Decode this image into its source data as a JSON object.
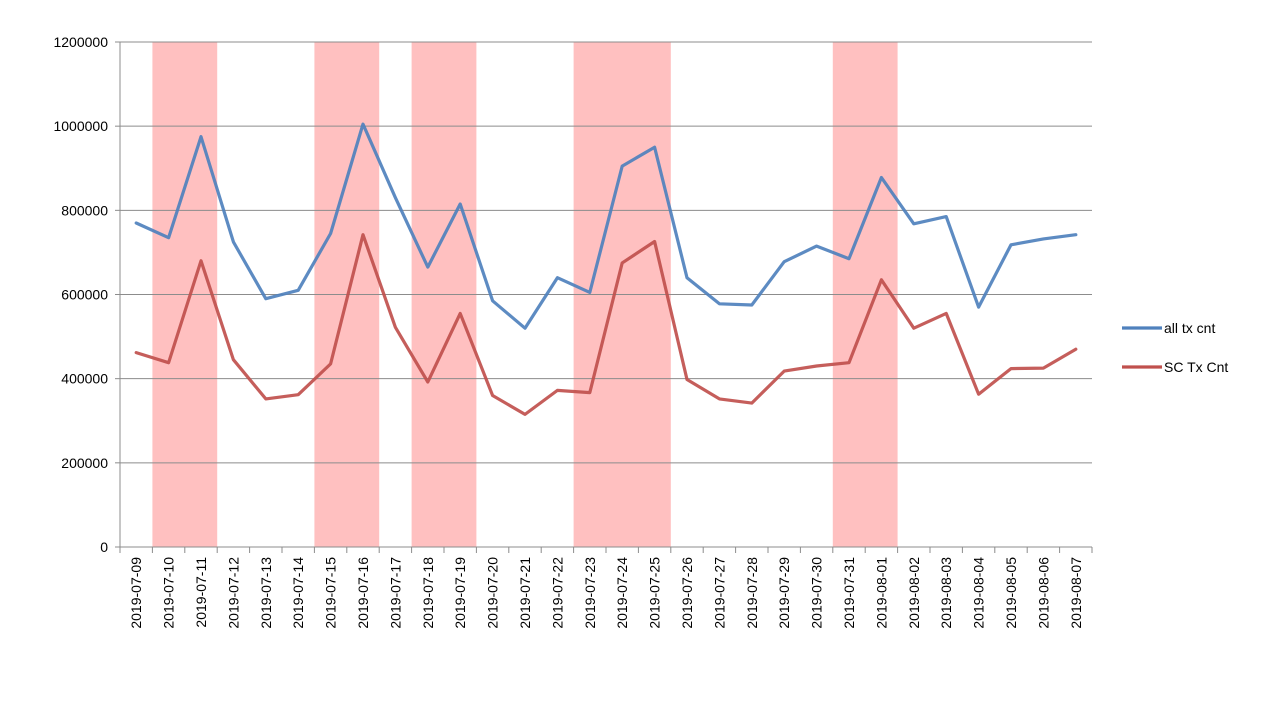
{
  "chart_data": {
    "type": "line",
    "title": "",
    "xlabel": "",
    "ylabel": "",
    "ylim": [
      0,
      1200000
    ],
    "yticks": [
      "0",
      "200000",
      "400000",
      "600000",
      "800000",
      "1000000",
      "1200000"
    ],
    "grid": "horizontal",
    "legend_position": "right",
    "categories": [
      "2019-07-09",
      "2019-07-10",
      "2019-07-11",
      "2019-07-12",
      "2019-07-13",
      "2019-07-14",
      "2019-07-15",
      "2019-07-16",
      "2019-07-17",
      "2019-07-18",
      "2019-07-19",
      "2019-07-20",
      "2019-07-21",
      "2019-07-22",
      "2019-07-23",
      "2019-07-24",
      "2019-07-25",
      "2019-07-26",
      "2019-07-27",
      "2019-07-28",
      "2019-07-29",
      "2019-07-30",
      "2019-07-31",
      "2019-08-01",
      "2019-08-02",
      "2019-08-03",
      "2019-08-04",
      "2019-08-05",
      "2019-08-06",
      "2019-08-07"
    ],
    "series": [
      {
        "name": "all tx cnt",
        "color": "#4f81bd",
        "values": [
          770000,
          735000,
          975000,
          725000,
          590000,
          610000,
          745000,
          1005000,
          830000,
          665000,
          815000,
          585000,
          520000,
          640000,
          605000,
          905000,
          950000,
          640000,
          578000,
          575000,
          678000,
          715000,
          685000,
          878000,
          768000,
          785000,
          570000,
          718000,
          732000,
          742000
        ]
      },
      {
        "name": "SC Tx Cnt",
        "color": "#c0504d",
        "values": [
          462000,
          438000,
          680000,
          445000,
          352000,
          362000,
          435000,
          742000,
          522000,
          392000,
          555000,
          360000,
          315000,
          372000,
          367000,
          675000,
          726000,
          398000,
          352000,
          342000,
          418000,
          430000,
          438000,
          635000,
          520000,
          555000,
          363000,
          424000,
          425000,
          470000
        ]
      }
    ],
    "highlight_bands": [
      {
        "from": "2019-07-10",
        "to": "2019-07-12",
        "color": "#ffc0c0"
      },
      {
        "from": "2019-07-15",
        "to": "2019-07-17",
        "color": "#ffc0c0"
      },
      {
        "from": "2019-07-18",
        "to": "2019-07-20",
        "color": "#ffc0c0"
      },
      {
        "from": "2019-07-23",
        "to": "2019-07-26",
        "color": "#ffc0c0"
      },
      {
        "from": "2019-07-31",
        "to": "2019-08-02",
        "color": "#ffc0c0"
      }
    ]
  },
  "legend": {
    "items": [
      "all tx cnt",
      "SC Tx Cnt"
    ]
  }
}
